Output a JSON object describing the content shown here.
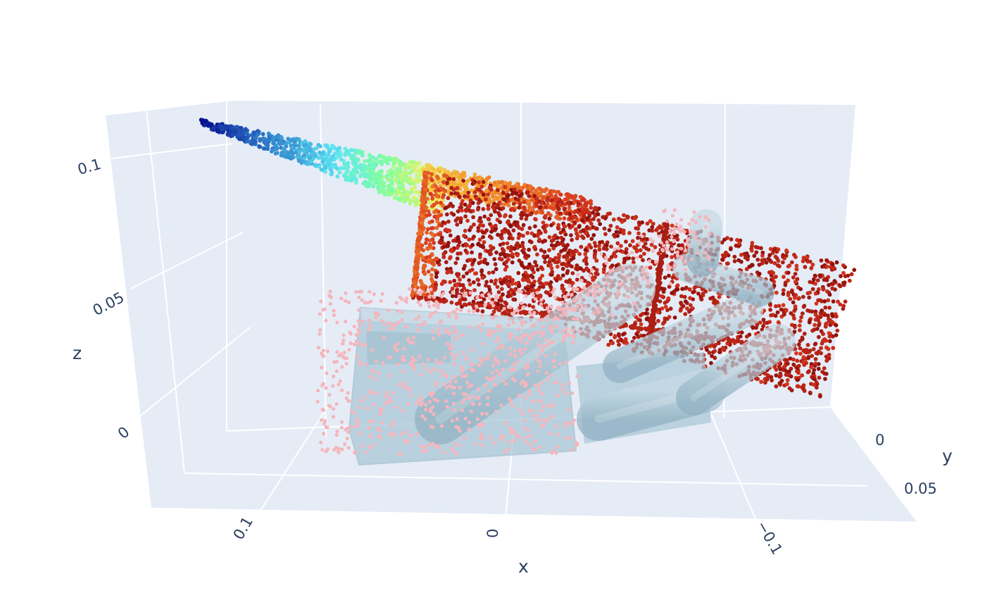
{
  "chart_data": {
    "type": "scatter3d",
    "title": "",
    "axes": {
      "x": {
        "title": "x",
        "ticks": [
          {
            "value": 0.1,
            "label": "0.1"
          },
          {
            "value": 0,
            "label": "0"
          },
          {
            "value": -0.1,
            "label": "−0.1"
          }
        ]
      },
      "y": {
        "title": "y",
        "ticks": [
          {
            "value": 0,
            "label": "0"
          },
          {
            "value": 0.05,
            "label": "0.05"
          }
        ]
      },
      "z": {
        "title": "z",
        "ticks": [
          {
            "value": 0.1,
            "label": "0.1"
          },
          {
            "value": 0.05,
            "label": "0.05"
          },
          {
            "value": 0,
            "label": "0"
          }
        ]
      }
    },
    "grid": true,
    "background_color": "#e5ecf6",
    "grid_color": "#ffffff",
    "series": [
      {
        "kind": "point-cloud",
        "colorscale": "jet",
        "colorscale_stops": [
          "#000080",
          "#1f4fb4",
          "#3a9ad6",
          "#5fe6f2",
          "#7fffa0",
          "#f2f25a",
          "#f5a030",
          "#d9361e",
          "#8b0e0b"
        ]
      },
      {
        "kind": "point-cloud",
        "color": "#f4b6bd"
      },
      {
        "kind": "mesh",
        "color": "#a9c6d6",
        "opacity": 0.72
      }
    ]
  }
}
